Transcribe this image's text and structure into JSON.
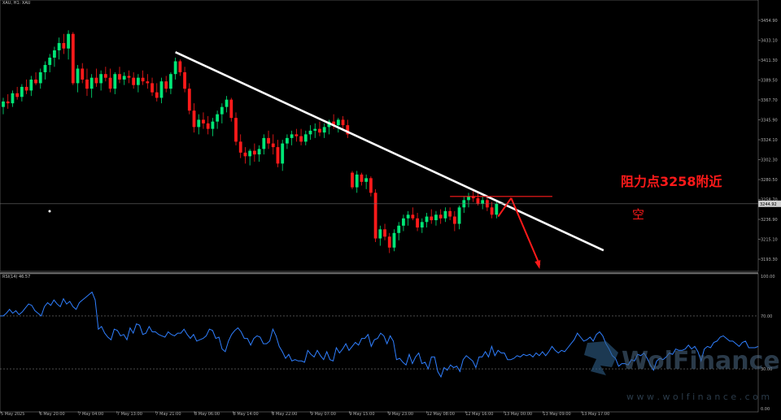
{
  "symbol_header": "XAU, H1: XAU",
  "current_price_tag": "3244.92",
  "resistance_label": "阻力点3258附近",
  "short_label": "空",
  "watermark": {
    "brand": "WolFinance",
    "url": "w w w . w o l f i n a n c e . c o m"
  },
  "colors": {
    "bull": "#00e676",
    "bear": "#ff1a1a",
    "trendline": "#ffffff",
    "rsi": "#2f7fff",
    "annotation": "#ff1a1a",
    "axis_text": "#b0b0b0"
  },
  "chart_data": [
    {
      "type": "candlestick",
      "price_ticks": [
        "3454.90",
        "3433.10",
        "3411.30",
        "3389.50",
        "3367.70",
        "3345.90",
        "3324.10",
        "3302.30",
        "3280.50",
        "3258.70",
        "3236.90",
        "3215.10",
        "3193.30"
      ],
      "ylim": [
        3180,
        3470
      ],
      "time_ticks": [
        "5 May 2025",
        "6 May 20:00",
        "7 May 04:00",
        "7 May 13:00",
        "7 May 21:00",
        "8 May 06:00",
        "8 May 14:00",
        "8 May 22:00",
        "9 May 07:00",
        "9 May 15:00",
        "9 May 23:00",
        "12 May 08:00",
        "12 May 16:00",
        "13 May 00:00",
        "13 May 09:00",
        "13 May 17:00"
      ],
      "candles": [
        [
          3360,
          3370,
          3352,
          3366
        ],
        [
          3366,
          3374,
          3358,
          3364
        ],
        [
          3364,
          3378,
          3360,
          3375
        ],
        [
          3375,
          3382,
          3368,
          3371
        ],
        [
          3371,
          3385,
          3366,
          3382
        ],
        [
          3382,
          3390,
          3374,
          3378
        ],
        [
          3378,
          3394,
          3372,
          3390
        ],
        [
          3390,
          3398,
          3384,
          3386
        ],
        [
          3386,
          3402,
          3380,
          3398
        ],
        [
          3398,
          3410,
          3390,
          3406
        ],
        [
          3406,
          3418,
          3398,
          3414
        ],
        [
          3414,
          3426,
          3404,
          3422
        ],
        [
          3422,
          3436,
          3412,
          3430
        ],
        [
          3430,
          3440,
          3418,
          3424
        ],
        [
          3424,
          3444,
          3412,
          3440
        ],
        [
          3440,
          3442,
          3384,
          3386
        ],
        [
          3386,
          3406,
          3376,
          3402
        ],
        [
          3402,
          3408,
          3386,
          3390
        ],
        [
          3390,
          3402,
          3372,
          3380
        ],
        [
          3380,
          3396,
          3370,
          3392
        ],
        [
          3392,
          3402,
          3382,
          3386
        ],
        [
          3386,
          3400,
          3378,
          3396
        ],
        [
          3396,
          3404,
          3388,
          3392
        ],
        [
          3392,
          3402,
          3376,
          3380
        ],
        [
          3380,
          3398,
          3374,
          3396
        ],
        [
          3396,
          3404,
          3386,
          3390
        ],
        [
          3390,
          3398,
          3384,
          3394
        ],
        [
          3394,
          3400,
          3386,
          3392
        ],
        [
          3392,
          3398,
          3380,
          3384
        ],
        [
          3384,
          3396,
          3376,
          3392
        ],
        [
          3392,
          3400,
          3384,
          3388
        ],
        [
          3388,
          3396,
          3380,
          3386
        ],
        [
          3386,
          3392,
          3372,
          3376
        ],
        [
          3376,
          3386,
          3366,
          3370
        ],
        [
          3370,
          3392,
          3364,
          3388
        ],
        [
          3388,
          3394,
          3376,
          3380
        ],
        [
          3380,
          3398,
          3374,
          3396
        ],
        [
          3396,
          3414,
          3390,
          3410
        ],
        [
          3410,
          3412,
          3394,
          3398
        ],
        [
          3398,
          3404,
          3376,
          3380
        ],
        [
          3380,
          3386,
          3352,
          3356
        ],
        [
          3356,
          3364,
          3332,
          3338
        ],
        [
          3338,
          3352,
          3330,
          3346
        ],
        [
          3346,
          3354,
          3336,
          3342
        ],
        [
          3342,
          3350,
          3330,
          3336
        ],
        [
          3336,
          3348,
          3328,
          3344
        ],
        [
          3344,
          3356,
          3336,
          3352
        ],
        [
          3352,
          3364,
          3342,
          3360
        ],
        [
          3360,
          3372,
          3354,
          3368
        ],
        [
          3368,
          3370,
          3344,
          3348
        ],
        [
          3348,
          3354,
          3318,
          3322
        ],
        [
          3322,
          3330,
          3304,
          3310
        ],
        [
          3310,
          3316,
          3298,
          3306
        ],
        [
          3306,
          3314,
          3296,
          3312
        ],
        [
          3312,
          3320,
          3300,
          3308
        ],
        [
          3308,
          3318,
          3300,
          3314
        ],
        [
          3314,
          3330,
          3308,
          3326
        ],
        [
          3326,
          3334,
          3314,
          3320
        ],
        [
          3320,
          3330,
          3308,
          3316
        ],
        [
          3316,
          3324,
          3294,
          3298
        ],
        [
          3298,
          3324,
          3290,
          3320
        ],
        [
          3320,
          3330,
          3314,
          3326
        ],
        [
          3326,
          3334,
          3318,
          3330
        ],
        [
          3330,
          3336,
          3322,
          3328
        ],
        [
          3328,
          3336,
          3318,
          3322
        ],
        [
          3322,
          3334,
          3318,
          3330
        ],
        [
          3330,
          3340,
          3324,
          3334
        ],
        [
          3334,
          3342,
          3326,
          3336
        ],
        [
          3336,
          3344,
          3328,
          3332
        ],
        [
          3332,
          3342,
          3326,
          3338
        ],
        [
          3338,
          3346,
          3330,
          3344
        ],
        [
          3344,
          3352,
          3336,
          3340
        ],
        [
          3340,
          3348,
          3332,
          3346
        ],
        [
          3346,
          3350,
          3336,
          3340
        ],
        [
          3340,
          3346,
          3326,
          3330
        ],
        [
          3288,
          3290,
          3270,
          3272
        ],
        [
          3272,
          3290,
          3266,
          3286
        ],
        [
          3286,
          3288,
          3274,
          3278
        ],
        [
          3278,
          3286,
          3270,
          3282
        ],
        [
          3282,
          3284,
          3262,
          3266
        ],
        [
          3266,
          3270,
          3212,
          3216
        ],
        [
          3216,
          3230,
          3208,
          3226
        ],
        [
          3226,
          3232,
          3214,
          3218
        ],
        [
          3218,
          3222,
          3200,
          3206
        ],
        [
          3206,
          3226,
          3202,
          3222
        ],
        [
          3222,
          3234,
          3214,
          3230
        ],
        [
          3230,
          3242,
          3224,
          3238
        ],
        [
          3238,
          3246,
          3230,
          3242
        ],
        [
          3242,
          3250,
          3236,
          3238
        ],
        [
          3238,
          3244,
          3224,
          3228
        ],
        [
          3228,
          3238,
          3222,
          3234
        ],
        [
          3234,
          3244,
          3228,
          3240
        ],
        [
          3240,
          3248,
          3232,
          3236
        ],
        [
          3236,
          3246,
          3230,
          3242
        ],
        [
          3242,
          3248,
          3232,
          3238
        ],
        [
          3238,
          3250,
          3234,
          3246
        ],
        [
          3246,
          3250,
          3236,
          3240
        ],
        [
          3240,
          3246,
          3224,
          3232
        ],
        [
          3232,
          3252,
          3226,
          3250
        ],
        [
          3250,
          3262,
          3244,
          3258
        ],
        [
          3258,
          3266,
          3250,
          3262
        ],
        [
          3262,
          3268,
          3256,
          3260
        ],
        [
          3260,
          3266,
          3252,
          3254
        ],
        [
          3254,
          3262,
          3248,
          3258
        ],
        [
          3258,
          3262,
          3246,
          3250
        ],
        [
          3250,
          3256,
          3238,
          3242
        ],
        [
          3242,
          3256,
          3238,
          3254
        ]
      ],
      "trendline": {
        "from": {
          "candle": 37,
          "price": 3420
        },
        "to": {
          "candle": 129,
          "price": 3203
        }
      },
      "resistance_segment": {
        "price": 3262,
        "candle_from": 96,
        "candle_to": 118
      }
    },
    {
      "type": "line",
      "title": "RSI(14) 46.57",
      "ylim": [
        0,
        100
      ],
      "ticks": [
        "100.00",
        "70.00",
        "30.00",
        "0.00"
      ],
      "levels": [
        70,
        30
      ],
      "values": [
        70,
        70,
        72,
        75,
        72,
        74,
        71,
        73,
        76,
        79,
        78,
        74,
        72,
        70,
        77,
        80,
        78,
        82,
        79,
        77,
        83,
        79,
        81,
        77,
        75,
        80,
        82,
        84,
        86,
        88,
        82,
        60,
        62,
        57,
        54,
        52,
        60,
        59,
        55,
        56,
        52,
        61,
        57,
        64,
        63,
        56,
        57,
        62,
        58,
        58,
        56,
        55,
        54,
        58,
        56,
        55,
        57,
        57,
        60,
        56,
        53,
        56,
        51,
        52,
        53,
        55,
        60,
        59,
        53,
        54,
        45,
        43,
        51,
        56,
        59,
        61,
        58,
        53,
        53,
        48,
        53,
        55,
        54,
        49,
        49,
        51,
        60,
        55,
        47,
        43,
        38,
        41,
        36,
        37,
        36,
        36,
        35,
        44,
        41,
        39,
        44,
        40,
        37,
        43,
        37,
        36,
        46,
        42,
        45,
        49,
        44,
        47,
        50,
        48,
        53,
        53,
        56,
        47,
        52,
        53,
        57,
        55,
        49,
        55,
        51,
        37,
        38,
        35,
        33,
        41,
        34,
        39,
        42,
        34,
        35,
        30,
        39,
        39,
        28,
        24,
        31,
        29,
        33,
        31,
        32,
        28,
        37,
        40,
        38,
        36,
        31,
        39,
        39,
        43,
        39,
        47,
        40,
        44,
        42,
        42,
        37,
        37,
        38,
        40,
        39,
        41,
        40,
        41,
        39,
        42,
        40,
        43,
        40,
        43,
        47,
        44,
        42,
        44,
        43,
        46,
        49,
        52,
        57,
        54,
        51,
        52,
        54,
        51,
        56,
        58,
        55,
        49,
        45,
        40,
        38,
        32,
        34,
        34,
        33,
        37,
        36,
        41,
        40,
        42,
        38,
        33,
        29,
        36,
        38,
        37,
        39,
        42,
        41,
        45,
        44,
        44,
        45,
        48,
        45,
        47,
        43,
        36,
        45,
        47,
        46,
        50,
        51,
        54,
        55,
        53,
        51,
        51,
        49,
        47,
        50,
        51,
        46,
        46,
        46,
        47
      ]
    }
  ]
}
